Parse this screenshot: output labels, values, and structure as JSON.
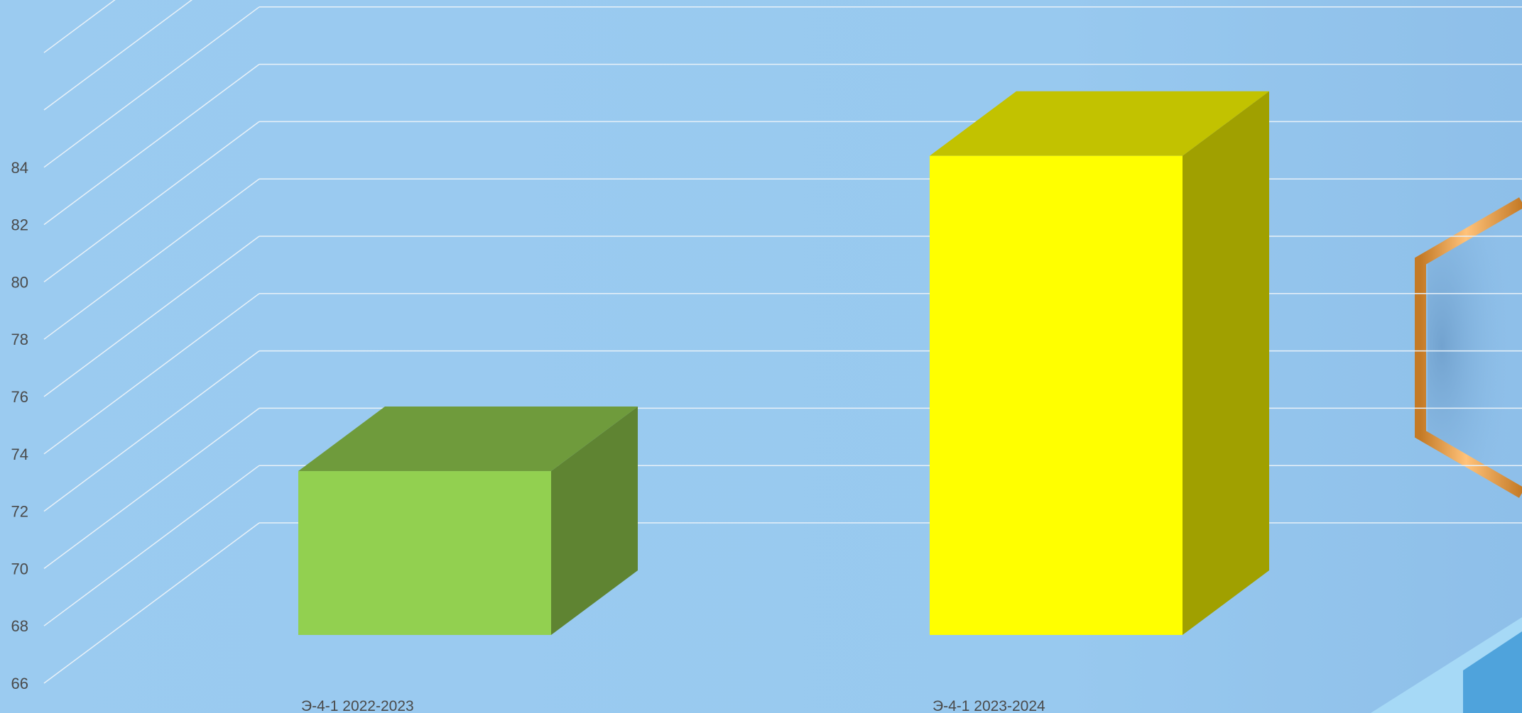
{
  "chart_data": {
    "type": "bar",
    "categories": [
      "Э-4-1 2022-2023",
      "Э-4-1 2023-2024"
    ],
    "values": [
      73.4,
      84.4
    ],
    "ylim": [
      66,
      84
    ],
    "ytick_labels": [
      "66",
      "68",
      "70",
      "72",
      "74",
      "76",
      "78",
      "80",
      "82",
      "84"
    ],
    "grid": true,
    "bar_colors": [
      {
        "front": "#92d050",
        "top": "#6f9b3c",
        "side": "#5f8432"
      },
      {
        "front": "#ffff00",
        "top": "#c2c200",
        "side": "#a0a000"
      }
    ]
  },
  "colors": {
    "background": "#9bcbf0",
    "gridline": "#e8f1f8",
    "tick_text": "#4a4a4a",
    "decoration_orange": "#e0913a",
    "decoration_blue": "#4fa3dc"
  }
}
